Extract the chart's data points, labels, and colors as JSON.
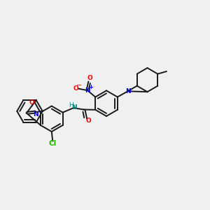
{
  "bg_color": "#f0f0f0",
  "bond_color": "#1a1a1a",
  "bond_width": 1.4,
  "atom_colors": {
    "N": "#0000ee",
    "O": "#ee0000",
    "Cl": "#22bb00",
    "NH": "#008080"
  },
  "figsize": [
    3.0,
    3.0
  ],
  "dpi": 100
}
